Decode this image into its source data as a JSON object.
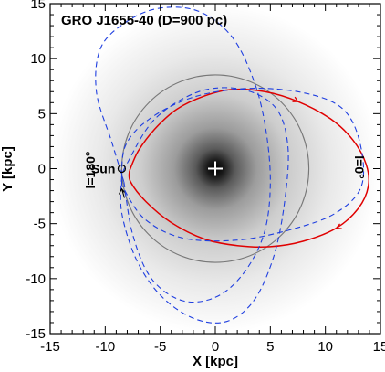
{
  "chart_data": {
    "type": "line",
    "title": "GRO J1655-40  (D=900 pc)",
    "xlabel": "X [kpc]",
    "ylabel": "Y [kpc]",
    "xlim": [
      -15,
      15
    ],
    "ylim": [
      -15,
      15
    ],
    "xticks": [
      -15,
      -10,
      -5,
      0,
      5,
      10,
      15
    ],
    "yticks": [
      -15,
      -10,
      -5,
      0,
      5,
      10,
      15
    ],
    "galactic_center": [
      0,
      0
    ],
    "sun": {
      "label": "Sun",
      "x": -8.5,
      "y": 0.0
    },
    "circle_radius": 8.5,
    "annotations": {
      "l180": "l=180°",
      "l0": "l=0°"
    },
    "series": [
      {
        "style": "solid",
        "color": "#e00000",
        "points": [
          [
            -7.8,
            -0.2
          ],
          [
            -7.0,
            1.6
          ],
          [
            -5.5,
            3.6
          ],
          [
            -3.5,
            5.4
          ],
          [
            -1.0,
            6.6
          ],
          [
            1.5,
            7.2
          ],
          [
            4.5,
            7.0
          ],
          [
            7.5,
            6.1
          ],
          [
            10.5,
            4.5
          ],
          [
            12.5,
            2.6
          ],
          [
            13.7,
            0.4
          ],
          [
            13.9,
            -1.6
          ],
          [
            13.0,
            -3.6
          ],
          [
            11.0,
            -5.4
          ],
          [
            8.0,
            -6.6
          ],
          [
            5.0,
            -7.1
          ],
          [
            2.0,
            -7.0
          ],
          [
            -1.0,
            -6.4
          ],
          [
            -4.0,
            -4.9
          ],
          [
            -6.3,
            -3.0
          ],
          [
            -7.7,
            -1.2
          ],
          [
            -7.8,
            -0.2
          ]
        ]
      },
      {
        "style": "dashed",
        "color": "#1f3fe0",
        "points": [
          [
            -8.3,
            -1.2
          ],
          [
            -9.4,
            2.4
          ],
          [
            -10.8,
            7.0
          ],
          [
            -10.4,
            11.0
          ],
          [
            -8.0,
            13.4
          ],
          [
            -5.0,
            14.6
          ],
          [
            -1.5,
            14.3
          ],
          [
            1.5,
            12.0
          ],
          [
            3.5,
            8.0
          ],
          [
            4.6,
            3.5
          ],
          [
            5.0,
            -1.5
          ],
          [
            4.4,
            -6.0
          ],
          [
            2.5,
            -9.6
          ],
          [
            0.0,
            -11.7
          ],
          [
            -3.0,
            -12.0
          ],
          [
            -5.8,
            -10.0
          ],
          [
            -7.5,
            -6.0
          ],
          [
            -8.3,
            -1.2
          ]
        ]
      },
      {
        "style": "dashed",
        "color": "#1f3fe0",
        "points": [
          [
            -8.5,
            -1.5
          ],
          [
            -8.2,
            2.0
          ],
          [
            -6.0,
            4.5
          ],
          [
            -2.0,
            6.5
          ],
          [
            3.0,
            7.3
          ],
          [
            8.0,
            6.9
          ],
          [
            11.5,
            5.5
          ],
          [
            13.1,
            2.5
          ],
          [
            13.3,
            -1.5
          ],
          [
            11.0,
            -4.0
          ],
          [
            7.0,
            -5.5
          ],
          [
            2.0,
            -6.5
          ],
          [
            -3.0,
            -6.3
          ],
          [
            -6.5,
            -4.5
          ],
          [
            -8.5,
            -1.5
          ]
        ]
      },
      {
        "style": "dashed",
        "color": "#1f3fe0",
        "points": [
          [
            -8.5,
            -0.7
          ],
          [
            -8.5,
            -4.0
          ],
          [
            -7.2,
            -8.2
          ],
          [
            -5.0,
            -11.5
          ],
          [
            -2.0,
            -13.6
          ],
          [
            1.0,
            -13.9
          ],
          [
            3.5,
            -12.0
          ],
          [
            5.3,
            -8.0
          ],
          [
            6.3,
            -3.0
          ],
          [
            6.6,
            2.0
          ],
          [
            5.5,
            5.5
          ],
          [
            2.5,
            7.2
          ],
          [
            -1.5,
            7.0
          ],
          [
            -5.5,
            4.5
          ],
          [
            -8.0,
            0.5
          ],
          [
            -8.5,
            -0.7
          ]
        ]
      }
    ]
  }
}
